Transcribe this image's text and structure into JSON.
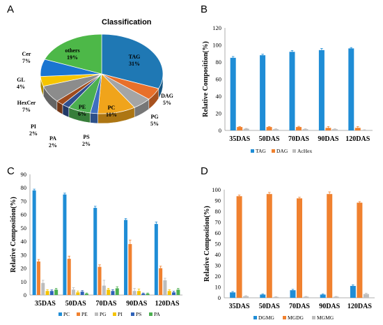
{
  "chart_data": [
    {
      "panel": "A",
      "type": "pie",
      "title": "Classification",
      "slices": [
        {
          "label": "TAG",
          "pct": "31%",
          "value": 31,
          "color": "#1f78b4"
        },
        {
          "label": "DAG",
          "pct": "5%",
          "value": 5,
          "color": "#e8702a"
        },
        {
          "label": "PG",
          "pct": "5%",
          "value": 5,
          "color": "#a5a5a5"
        },
        {
          "label": "PC",
          "pct": "10%",
          "value": 10,
          "color": "#f0a41b"
        },
        {
          "label": "PS",
          "pct": "2%",
          "value": 2,
          "color": "#3e6fc0"
        },
        {
          "label": "PE",
          "pct": "6%",
          "value": 6,
          "color": "#4caf50"
        },
        {
          "label": "PA",
          "pct": "2%",
          "value": 2,
          "color": "#2f4f8f"
        },
        {
          "label": "PI",
          "pct": "2%",
          "value": 2,
          "color": "#9e4b1e"
        },
        {
          "label": "HexCer",
          "pct": "7%",
          "value": 7,
          "color": "#8c8c8c"
        },
        {
          "label": "GL",
          "pct": "4%",
          "value": 4,
          "color": "#f5c400"
        },
        {
          "label": "Cer",
          "pct": "7%",
          "value": 7,
          "color": "#1a75d1"
        },
        {
          "label": "others",
          "pct": "19%",
          "value": 19,
          "color": "#4db848"
        }
      ]
    },
    {
      "panel": "B",
      "type": "bar",
      "ylabel": "Relative   Composition(%)",
      "ylim": [
        0,
        120
      ],
      "yticks": [
        0,
        20,
        40,
        60,
        80,
        100,
        120
      ],
      "categories": [
        "35DAS",
        "50DAS",
        "70DAS",
        "90DAS",
        "120DAS"
      ],
      "series": [
        {
          "name": "TAG",
          "color": "#1f8dd6",
          "values": [
            85,
            88,
            92,
            94,
            96
          ],
          "errors": [
            1.5,
            1.2,
            1.5,
            2,
            1
          ]
        },
        {
          "name": "DAG",
          "color": "#f0812f",
          "values": [
            4,
            4,
            4,
            3,
            3
          ],
          "errors": [
            0.6,
            0.6,
            0.8,
            1.5,
            1.5
          ]
        },
        {
          "name": "AcHex",
          "color": "#bdbdbd",
          "values": [
            2,
            1.5,
            1.5,
            1.5,
            0.5
          ],
          "errors": [
            0.4,
            0.4,
            0.4,
            0.4,
            0.3
          ]
        }
      ]
    },
    {
      "panel": "C",
      "type": "bar",
      "ylabel": "Relative   Composition(%)",
      "ylim": [
        0,
        90
      ],
      "yticks": [
        0,
        10,
        20,
        30,
        40,
        50,
        60,
        70,
        80,
        90
      ],
      "categories": [
        "35DAS",
        "50DAS",
        "70DAS",
        "90DAS",
        "120DAS"
      ],
      "series": [
        {
          "name": "PC",
          "color": "#1f8dd6",
          "values": [
            78,
            75,
            65,
            56,
            53
          ],
          "errors": [
            1,
            1,
            1.2,
            1,
            1.5
          ]
        },
        {
          "name": "PE",
          "color": "#f0812f",
          "values": [
            25,
            27,
            21,
            38,
            20
          ],
          "errors": [
            1.5,
            2,
            1.5,
            3,
            1.5
          ]
        },
        {
          "name": "PG",
          "color": "#bdbdbd",
          "values": [
            9,
            4,
            7,
            3,
            11
          ],
          "errors": [
            2,
            1.5,
            4,
            2,
            1.5
          ]
        },
        {
          "name": "PI",
          "color": "#f5c400",
          "values": [
            3,
            2,
            4,
            3,
            3
          ],
          "errors": [
            1,
            1,
            1,
            1.5,
            1
          ]
        },
        {
          "name": "PS",
          "color": "#2f62b8",
          "values": [
            3,
            2.5,
            3,
            1,
            2
          ],
          "errors": [
            0.8,
            0.8,
            1,
            0.5,
            0.8
          ]
        },
        {
          "name": "PA",
          "color": "#4caf50",
          "values": [
            4,
            1,
            5,
            1,
            4
          ],
          "errors": [
            1,
            0.5,
            1.2,
            0.5,
            1
          ]
        }
      ]
    },
    {
      "panel": "D",
      "type": "bar",
      "ylabel": "Relative   Composition(%)",
      "ylim": [
        0,
        100
      ],
      "yticks": [
        0,
        10,
        20,
        30,
        40,
        50,
        60,
        70,
        80,
        90,
        100
      ],
      "categories": [
        "35DAS",
        "50DAS",
        "70DAS",
        "90DAS",
        "120DAS"
      ],
      "series": [
        {
          "name": "DGMG",
          "color": "#1f8dd6",
          "values": [
            5,
            3,
            7,
            3,
            11
          ],
          "errors": [
            0.8,
            0.6,
            0.8,
            0.6,
            1
          ]
        },
        {
          "name": "MGDG",
          "color": "#f0812f",
          "values": [
            94,
            96,
            92,
            96,
            88
          ],
          "errors": [
            1,
            1.5,
            1,
            2,
            1
          ]
        },
        {
          "name": "MGMG",
          "color": "#bdbdbd",
          "values": [
            1.5,
            0.8,
            1,
            1,
            3.5
          ],
          "errors": [
            0.5,
            0.3,
            0.3,
            0.3,
            0.8
          ]
        }
      ]
    }
  ]
}
